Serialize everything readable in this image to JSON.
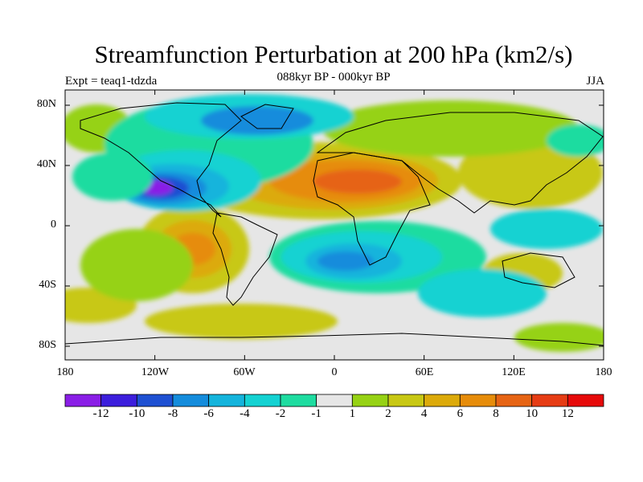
{
  "title": "Streamfunction Perturbation at 200 hPa (km2/s)",
  "subtitle": "088kyr BP - 000kyr BP",
  "left_label": "Expt = teaq1-tdzda",
  "right_label": "JJA",
  "lat_labels": [
    "80N",
    "40N",
    "0",
    "40S",
    "80S"
  ],
  "lon_labels": [
    "180",
    "120W",
    "60W",
    "0",
    "60E",
    "120E",
    "180"
  ],
  "colorbar": {
    "colors": [
      "#8a1ee6",
      "#3c1edc",
      "#1e50d2",
      "#148cdc",
      "#14b4dc",
      "#14d2d2",
      "#1edca0",
      "#e6e6e6",
      "#96d214",
      "#c8c814",
      "#dcaa0a",
      "#e68c0a",
      "#e66414",
      "#e63c14",
      "#e60a0a"
    ],
    "labels": [
      "-12",
      "-10",
      "-8",
      "-6",
      "-4",
      "-2",
      "-1",
      "1",
      "2",
      "4",
      "6",
      "8",
      "10",
      "12"
    ]
  },
  "map_colors": {
    "background": "#e6e6e6",
    "coast": "#000000"
  }
}
